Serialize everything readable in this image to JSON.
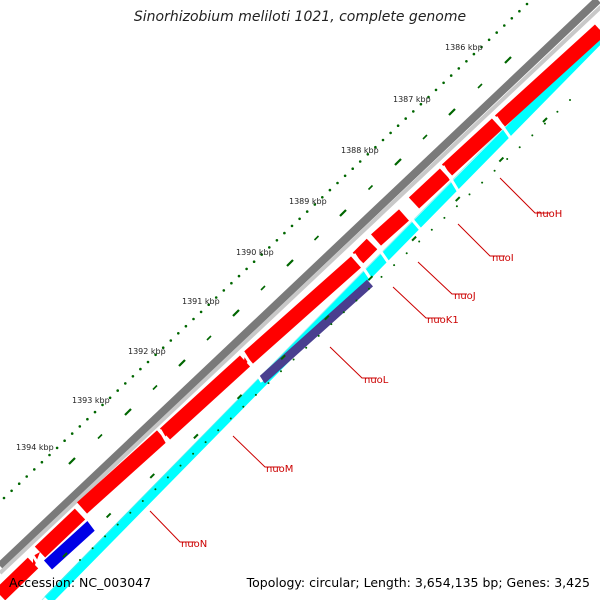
{
  "title": "Sinorhizobium meliloti 1021, complete genome",
  "footer": {
    "accession": "Accession: NC_003047",
    "topology": "Topology: circular; Length: 3,654,135 bp; Genes: 3,425"
  },
  "colors": {
    "backbone": "#888888",
    "forward_strand": "#ff0000",
    "cds_track": "#00ffff",
    "highlight_dark": "#4a3f8f",
    "highlight_blue": "#0000e6",
    "tick": "#006600",
    "label": "#cc0000"
  },
  "scale": {
    "ticks": [
      {
        "label": "1386 kbp"
      },
      {
        "label": "1387 kbp"
      },
      {
        "label": "1388 kbp"
      },
      {
        "label": "1389 kbp"
      },
      {
        "label": "1390 kbp"
      },
      {
        "label": "1391 kbp"
      },
      {
        "label": "1392 kbp"
      },
      {
        "label": "1393 kbp"
      },
      {
        "label": "1394 kbp"
      }
    ]
  },
  "genes": [
    {
      "name": "nuoH"
    },
    {
      "name": "nuoI"
    },
    {
      "name": "nuoJ"
    },
    {
      "name": "nuoK1"
    },
    {
      "name": "nuoL"
    },
    {
      "name": "nuoM"
    },
    {
      "name": "nuoN"
    }
  ]
}
